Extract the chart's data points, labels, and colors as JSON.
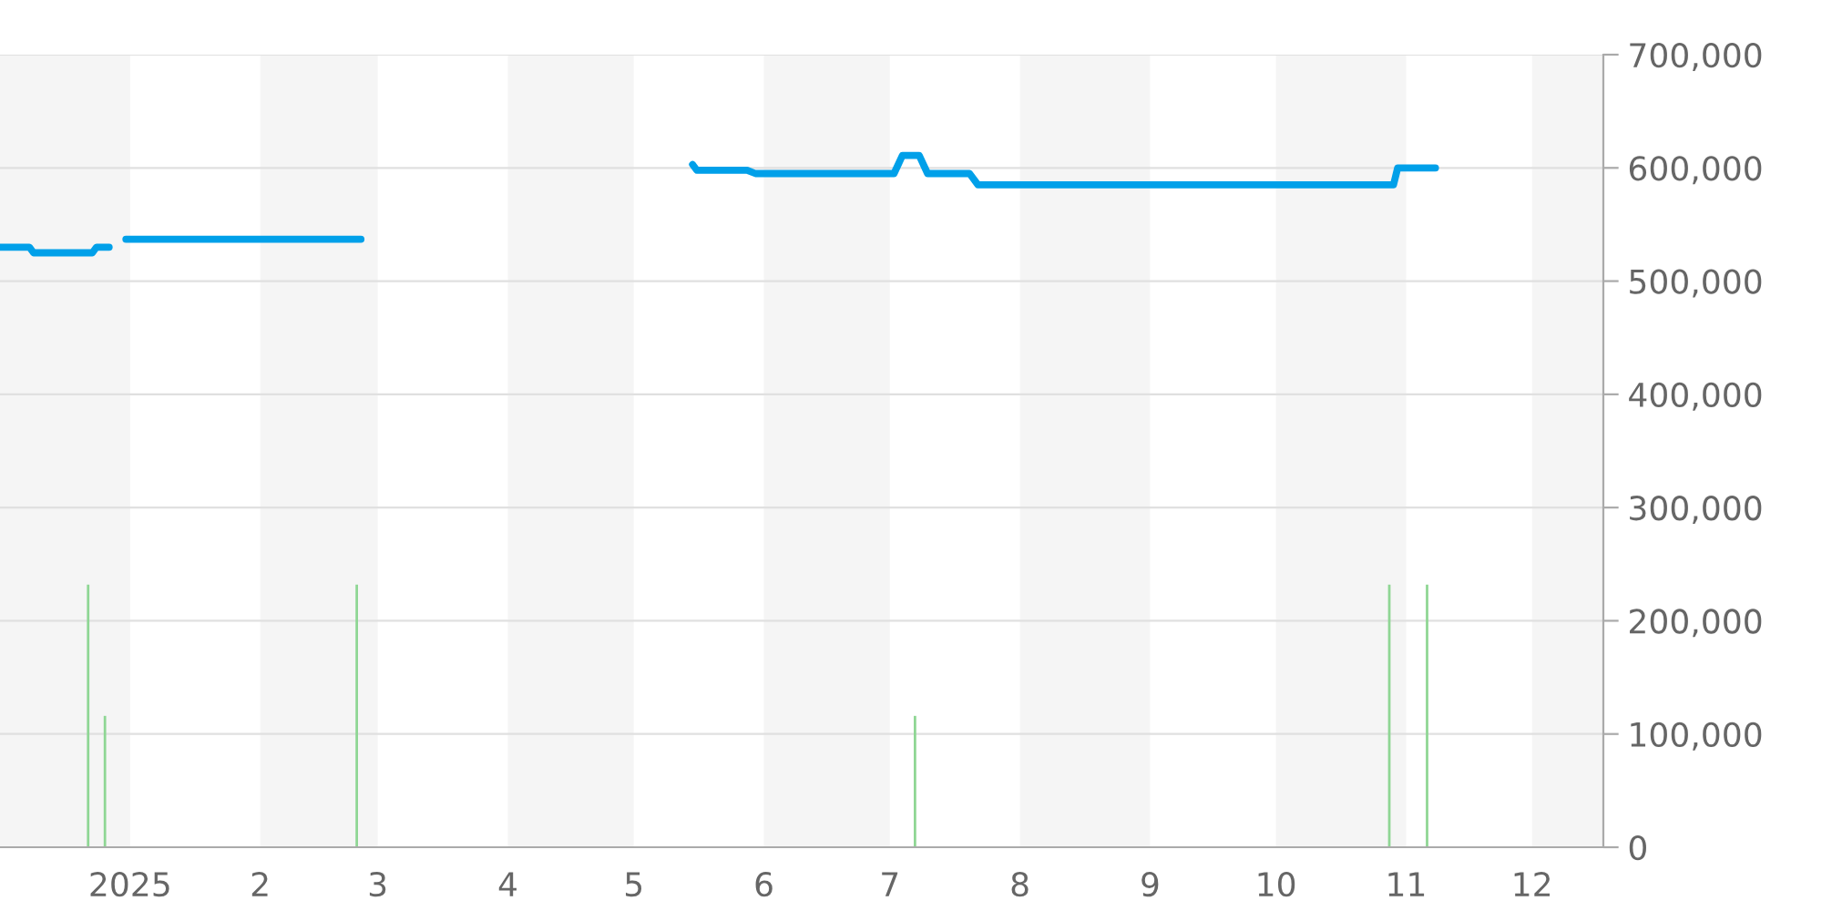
{
  "chart_data": {
    "type": "line",
    "series": [
      {
        "color": "#00a0e9",
        "x": [
          "2024-12-01",
          "2024-12-08",
          "2024-12-09",
          "2024-12-23",
          "2024-12-24",
          "2024-12-27",
          "2024-12-29",
          "2024-12-31",
          "2025-02-25",
          "2025-03-15",
          "2025-05-15",
          "2025-05-16",
          "2025-05-28",
          "2025-05-30",
          "2025-07-02",
          "2025-07-04",
          "2025-07-08",
          "2025-07-10",
          "2025-07-20",
          "2025-07-22",
          "2025-10-29",
          "2025-10-30",
          "2025-11-08"
        ],
        "values": [
          530000,
          530000,
          525000,
          525000,
          530000,
          530000,
          null,
          537000,
          537000,
          null,
          603000,
          598000,
          598000,
          595000,
          595000,
          611000,
          611000,
          595000,
          595000,
          585000,
          585000,
          600000,
          600000
        ]
      },
      {
        "type": "bar",
        "color": "#8fd694",
        "x": [
          "2024-12-22",
          "2024-12-26",
          "2025-02-24",
          "2025-07-07",
          "2025-10-28",
          "2025-11-06"
        ],
        "values": [
          232000,
          116000,
          232000,
          116000,
          232000,
          232000
        ]
      }
    ],
    "xlim": [
      "2024-12-01",
      "2025-12-18"
    ],
    "xticks": [
      {
        "value": "2025-01-01",
        "label": "2025"
      },
      {
        "value": "2025-02-01",
        "label": "2"
      },
      {
        "value": "2025-03-01",
        "label": "3"
      },
      {
        "value": "2025-04-01",
        "label": "4"
      },
      {
        "value": "2025-05-01",
        "label": "5"
      },
      {
        "value": "2025-06-01",
        "label": "6"
      },
      {
        "value": "2025-07-01",
        "label": "7"
      },
      {
        "value": "2025-08-01",
        "label": "8"
      },
      {
        "value": "2025-09-01",
        "label": "9"
      },
      {
        "value": "2025-10-01",
        "label": "10"
      },
      {
        "value": "2025-11-01",
        "label": "11"
      },
      {
        "value": "2025-12-01",
        "label": "12"
      }
    ],
    "ylim": [
      0,
      700000
    ],
    "yticks": [
      {
        "value": 0,
        "label": "0"
      },
      {
        "value": 100000,
        "label": "100,000"
      },
      {
        "value": 200000,
        "label": "200,000"
      },
      {
        "value": 300000,
        "label": "300,000"
      },
      {
        "value": 400000,
        "label": "400,000"
      },
      {
        "value": 500000,
        "label": "500,000"
      },
      {
        "value": 600000,
        "label": "600,000"
      },
      {
        "value": 700000,
        "label": "700,000"
      }
    ],
    "bands": [
      {
        "axis": "x",
        "from": "2024-12-01",
        "to": "2025-01-01",
        "color": "#f5f5f5"
      },
      {
        "axis": "x",
        "from": "2025-02-01",
        "to": "2025-03-01",
        "color": "#f5f5f5"
      },
      {
        "axis": "x",
        "from": "2025-04-01",
        "to": "2025-05-01",
        "color": "#f5f5f5"
      },
      {
        "axis": "x",
        "from": "2025-06-01",
        "to": "2025-07-01",
        "color": "#f5f5f5"
      },
      {
        "axis": "x",
        "from": "2025-08-01",
        "to": "2025-09-01",
        "color": "#f5f5f5"
      },
      {
        "axis": "x",
        "from": "2025-10-01",
        "to": "2025-11-01",
        "color": "#f5f5f5"
      },
      {
        "axis": "x",
        "from": "2025-12-01",
        "to": "2025-12-18",
        "color": "#f5f5f5"
      }
    ],
    "grid": "y",
    "line_style": "solid"
  }
}
